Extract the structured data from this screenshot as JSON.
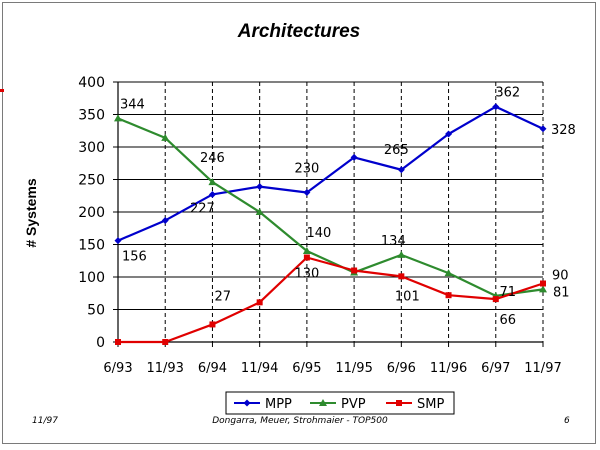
{
  "footer": {
    "left": "11/97",
    "center": "Dongarra, Meuer, Strohmaier - TOP500",
    "right": "6"
  },
  "chart_data": {
    "type": "line",
    "title": "Architectures",
    "xlabel": "",
    "ylabel": "# Systems",
    "categories": [
      "6/93",
      "11/93",
      "6/94",
      "11/94",
      "6/95",
      "11/95",
      "6/96",
      "11/96",
      "6/97",
      "11/97"
    ],
    "ylim": [
      0,
      400
    ],
    "yticks": [
      0,
      50,
      100,
      150,
      200,
      250,
      300,
      350,
      400
    ],
    "grid": {
      "horizontal": true,
      "vertical": "dashed"
    },
    "legend_position": "bottom",
    "series": [
      {
        "name": "MPP",
        "color": "#0000cc",
        "marker": "diamond",
        "values": [
          156,
          187,
          227,
          239,
          230,
          284,
          265,
          320,
          362,
          328
        ]
      },
      {
        "name": "PVP",
        "color": "#2e8b2e",
        "marker": "triangle",
        "values": [
          344,
          314,
          246,
          200,
          140,
          107,
          134,
          106,
          71,
          81
        ]
      },
      {
        "name": "SMP",
        "color": "#e00000",
        "marker": "square",
        "values": [
          0,
          0,
          27,
          61,
          130,
          110,
          101,
          72,
          66,
          90
        ]
      }
    ],
    "data_labels": [
      {
        "series": "PVP",
        "index": 0,
        "text": "344"
      },
      {
        "series": "MPP",
        "index": 0,
        "text": "156"
      },
      {
        "series": "PVP",
        "index": 2,
        "text": "246"
      },
      {
        "series": "MPP",
        "index": 2,
        "text": "227"
      },
      {
        "series": "SMP",
        "index": 2,
        "text": "27"
      },
      {
        "series": "MPP",
        "index": 4,
        "text": "230"
      },
      {
        "series": "PVP",
        "index": 4,
        "text": "140"
      },
      {
        "series": "SMP",
        "index": 4,
        "text": "130"
      },
      {
        "series": "MPP",
        "index": 6,
        "text": "265"
      },
      {
        "series": "PVP",
        "index": 6,
        "text": "134"
      },
      {
        "series": "SMP",
        "index": 6,
        "text": "101"
      },
      {
        "series": "MPP",
        "index": 8,
        "text": "362"
      },
      {
        "series": "PVP",
        "index": 8,
        "text": "71"
      },
      {
        "series": "SMP",
        "index": 8,
        "text": "66"
      },
      {
        "series": "MPP",
        "index": 9,
        "text": "328"
      },
      {
        "series": "SMP",
        "index": 9,
        "text": "90"
      },
      {
        "series": "PVP",
        "index": 9,
        "text": "81"
      }
    ]
  }
}
